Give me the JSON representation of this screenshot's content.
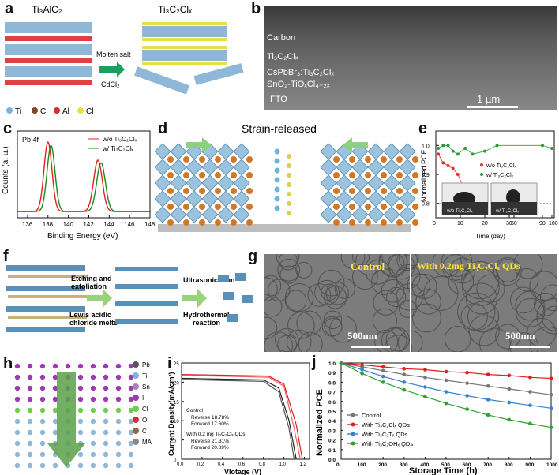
{
  "labels": {
    "a": "a",
    "b": "b",
    "c": "c",
    "d": "d",
    "e": "e",
    "f": "f",
    "g": "g",
    "h": "h",
    "i": "i",
    "j": "j"
  },
  "panel_a": {
    "title_left": "Ti₃AlC₂",
    "title_right": "Ti₃C₂Clₓ",
    "arrow_top": "Molten salt",
    "arrow_bottom": "CdCl₂",
    "legend": [
      {
        "name": "Ti",
        "color": "#7fb2e0"
      },
      {
        "name": "C",
        "color": "#7a4a2a"
      },
      {
        "name": "Al",
        "color": "#d43030"
      },
      {
        "name": "Cl",
        "color": "#e8e040"
      }
    ]
  },
  "panel_b": {
    "layers": [
      "Carbon",
      "Ti₃C₂Clₓ",
      "CsPbBr₃:Ti₃C₂Clₓ",
      "SnO₂-TiOₓCl₄₋₂ₓ",
      "FTO"
    ],
    "scalebar": "1 µm"
  },
  "panel_c": {
    "tag": "Pb 4f",
    "ylabel": "Counts (a. u.)",
    "xlabel": "Binding Energy (eV)",
    "xticks": [
      "136",
      "138",
      "140",
      "142",
      "144",
      "146",
      "148"
    ],
    "legend": [
      {
        "name": "w/o Ti₃C₂Clₓ",
        "color": "#e02020"
      },
      {
        "name": "w/  Ti₃C₂Clₓ",
        "color": "#1a8a1a"
      }
    ]
  },
  "panel_d": {
    "title": "Strain-released"
  },
  "panel_e": {
    "ylabel": "Normalized PCE",
    "xlabel": "Time (day)",
    "yticks": [
      "0.8",
      "0.9",
      "1.0"
    ],
    "xticks": [
      "0",
      "10",
      "20",
      "30",
      "60",
      "90",
      "100"
    ],
    "legend": [
      {
        "name": "w/o Ti₃C₂Clₓ",
        "color": "#e03030"
      },
      {
        "name": "w/  Ti₃C₂Clₓ",
        "color": "#2a9a3a"
      }
    ],
    "inset_left": "w/o Ti₃C₂Clₓ",
    "inset_right": "w/  Ti₃C₂Clₓ"
  },
  "panel_f": {
    "step1": [
      "Etching and",
      "exfoliation"
    ],
    "step1b": [
      "Lewis acidic",
      "chloride melts"
    ],
    "step2": "Ultrasonication",
    "step2b": [
      "Hydrothermal",
      "reaction"
    ]
  },
  "panel_g": {
    "left": "Control",
    "right": "With 0.2mg Ti₃C₂Clₓ QDs",
    "scalebar": "500nm"
  },
  "panel_h": {
    "legend": [
      "Pb",
      "Ti",
      "Sn",
      "I",
      "Cl",
      "O",
      "C",
      "MA"
    ],
    "colors": [
      "#555",
      "#7fb2e0",
      "#b07cc0",
      "#9a3bb0",
      "#6ccf4c",
      "#d03030",
      "#8a6a4a",
      "#888"
    ]
  },
  "panel_i": {
    "ylabel": "Current Density(mA/cm²)",
    "xlabel": "Vlotage (V)",
    "yticks": [
      "0",
      "5",
      "10",
      "15",
      "20",
      "25"
    ],
    "xticks": [
      "0.0",
      "0.2",
      "0.4",
      "0.6",
      "0.8",
      "1.0",
      "1.2"
    ],
    "control": "Control",
    "ctrl_rev": "Reverse 18.78%",
    "ctrl_fwd": "Forward 17.60%",
    "qd": "With 0.2 mg Ti₃C₂Clₓ QDs",
    "qd_rev": "Reverse 21.31%",
    "qd_fwd": "Forward 20.89%"
  },
  "chart_data": [
    {
      "type": "line",
      "panel": "c",
      "xlabel": "Binding Energy (eV)",
      "ylabel": "Counts (a. u.)",
      "xlim": [
        135,
        148
      ],
      "series": [
        {
          "name": "w/o Ti₃C₂Clₓ",
          "peaks": [
            138.0,
            142.9
          ]
        },
        {
          "name": "w/  Ti₃C₂Clₓ",
          "peaks": [
            138.3,
            143.2
          ]
        }
      ]
    },
    {
      "type": "line",
      "panel": "e",
      "xlabel": "Time (day)",
      "ylabel": "Normalized PCE",
      "series": [
        {
          "name": "w/o Ti₃C₂Clₓ",
          "x": [
            1,
            3,
            5,
            7,
            9,
            11,
            15
          ],
          "y": [
            0.97,
            0.94,
            0.93,
            0.92,
            0.9,
            0.86,
            0.82
          ]
        },
        {
          "name": "w/  Ti₃C₂Clₓ",
          "x": [
            1,
            3,
            5,
            7,
            9,
            12,
            15,
            20,
            25,
            90,
            100
          ],
          "y": [
            0.99,
            1.0,
            1.0,
            0.98,
            0.97,
            0.99,
            0.97,
            0.98,
            1.0,
            1.0,
            0.99
          ]
        }
      ]
    },
    {
      "type": "line",
      "panel": "i",
      "xlabel": "Vlotage (V)",
      "ylabel": "Current Density(mA/cm²)",
      "xlim": [
        0,
        1.25
      ],
      "ylim": [
        0,
        25
      ],
      "series": [
        {
          "name": "Control Reverse 18.78%",
          "x": [
            0,
            0.8,
            0.95,
            1.05,
            1.12
          ],
          "y": [
            21.0,
            20.6,
            18.5,
            10,
            0
          ]
        },
        {
          "name": "Control Forward 17.60%",
          "x": [
            0,
            0.8,
            0.95,
            1.05,
            1.1
          ],
          "y": [
            20.7,
            20.2,
            17.5,
            8,
            0
          ]
        },
        {
          "name": "QD Reverse 21.31%",
          "x": [
            0,
            0.85,
            1.0,
            1.12,
            1.18
          ],
          "y": [
            22.0,
            21.6,
            19.5,
            9,
            0
          ]
        },
        {
          "name": "QD Forward 20.89%",
          "x": [
            0,
            0.85,
            1.0,
            1.1,
            1.16
          ],
          "y": [
            21.8,
            21.3,
            19.0,
            8,
            0
          ]
        }
      ]
    },
    {
      "type": "line",
      "panel": "j",
      "xlabel": "Storage Time (h)",
      "ylabel": "Normalized PCE",
      "xlim": [
        0,
        1000
      ],
      "ylim": [
        0,
        1.0
      ],
      "xticks": [
        "0",
        "100",
        "200",
        "300",
        "400",
        "500",
        "600",
        "700",
        "800",
        "900",
        "1000"
      ],
      "yticks": [
        "0.0",
        "0.1",
        "0.2",
        "0.3",
        "0.4",
        "0.5",
        "0.6",
        "0.7",
        "0.8",
        "0.9",
        "1.0"
      ],
      "series": [
        {
          "name": "Control",
          "color": "#777777",
          "x": [
            0,
            100,
            200,
            300,
            400,
            500,
            600,
            700,
            800,
            900,
            1000
          ],
          "y": [
            1.0,
            0.96,
            0.92,
            0.88,
            0.85,
            0.82,
            0.79,
            0.76,
            0.73,
            0.7,
            0.67
          ]
        },
        {
          "name": "With Ti₃C₂Clₓ QDs",
          "color": "#e02020",
          "x": [
            0,
            100,
            200,
            300,
            400,
            500,
            600,
            700,
            800,
            900,
            1000
          ],
          "y": [
            1.0,
            0.98,
            0.96,
            0.94,
            0.93,
            0.91,
            0.9,
            0.88,
            0.87,
            0.85,
            0.84
          ]
        },
        {
          "name": "With Ti₃C₂Tₓ QDs",
          "color": "#3a80d0",
          "x": [
            0,
            100,
            200,
            300,
            400,
            500,
            600,
            700,
            800,
            900,
            1000
          ],
          "y": [
            1.0,
            0.93,
            0.86,
            0.8,
            0.75,
            0.7,
            0.66,
            0.62,
            0.59,
            0.56,
            0.53
          ]
        },
        {
          "name": "With Ti₃C₂OHₓ QDs",
          "color": "#30a030",
          "x": [
            0,
            100,
            200,
            300,
            400,
            500,
            600,
            700,
            800,
            900,
            1000
          ],
          "y": [
            1.0,
            0.89,
            0.8,
            0.72,
            0.65,
            0.58,
            0.52,
            0.46,
            0.41,
            0.37,
            0.33
          ]
        }
      ]
    }
  ]
}
